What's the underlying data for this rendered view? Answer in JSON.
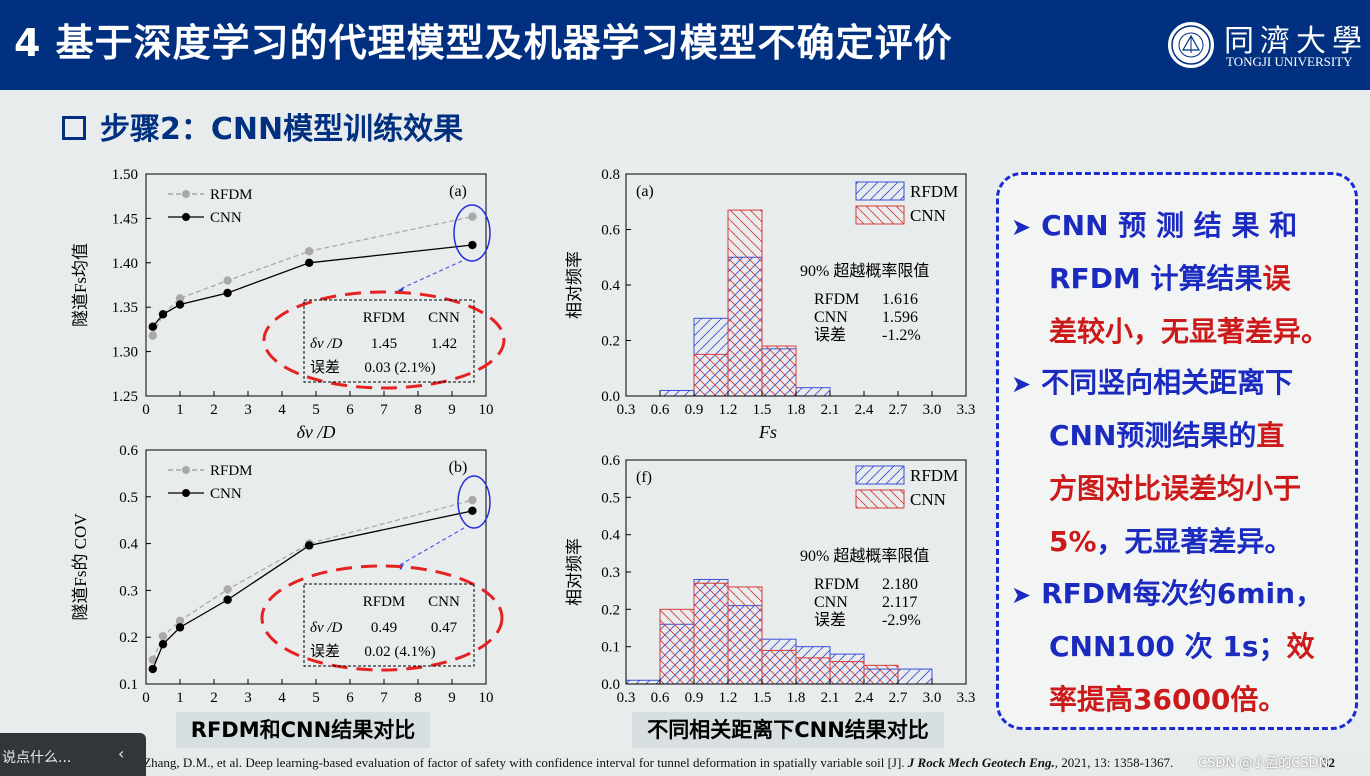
{
  "slide": {
    "title": "4 基于深度学习的代理模型及机器学习模型不确定评价",
    "subheading": "步骤2：CNN模型训练效果",
    "logo": {
      "cn": "同濟大學",
      "en": "TONGJI UNIVERSITY"
    }
  },
  "captions": {
    "left": "RFDM和CNN结果对比",
    "right": "不同相关距离下CNN结果对比"
  },
  "summary": {
    "line1": "CNN 预 测 结 果 和",
    "line2a": "RFDM 计算结果",
    "line2b": "误",
    "line3a": "差较小，无显著差异。",
    "line4": "不同竖向相关距离下",
    "line5a": "CNN预测结果的",
    "line5b": "直",
    "line6": "方图对比误差均小于",
    "line7a": "5%",
    "line7b": "，无显著差异。",
    "line8": "RFDM每次约6min，",
    "line9a": "CNN100 次 1s；",
    "line9b": "效",
    "line10": "率提高36000倍。"
  },
  "footer": {
    "citation_start": "Zhang, J.Z., Phoon, K.K., Zhang, D.M., et al. Deep learning-based evaluation of factor of safety with confidence interval for tunnel deformation in spatially variable soil [J]. ",
    "journal": "J Rock Mech Geotech Eng.",
    "citation_end": ", 2021, 13: 1358-1367.",
    "page_number": "32"
  },
  "overlay": {
    "popup_text": "说点什么...",
    "chevron": "‹",
    "watermark": "CSDN @小孟的CSDN"
  },
  "colors": {
    "title_bg": "#00307f",
    "rfdm": "#3a4fd6",
    "cnn": "#d83a3a",
    "bullet_blue": "#1b2abf",
    "emphasis_red": "#cc1a1a"
  },
  "chart_data": [
    {
      "type": "line",
      "panel_label": "(a)",
      "xlabel": "δv /D",
      "ylabel": "隧道Fs均值",
      "xlim": [
        0,
        10
      ],
      "ylim": [
        1.25,
        1.5
      ],
      "xticks": [
        0,
        1,
        2,
        3,
        4,
        5,
        6,
        7,
        8,
        9,
        10
      ],
      "yticks": [
        1.25,
        1.3,
        1.35,
        1.4,
        1.45,
        1.5
      ],
      "x": [
        0.2,
        0.5,
        1.0,
        2.4,
        4.8,
        9.6
      ],
      "series": [
        {
          "name": "RFDM",
          "values": [
            1.318,
            1.342,
            1.36,
            1.38,
            1.413,
            1.452
          ]
        },
        {
          "name": "CNN",
          "values": [
            1.328,
            1.342,
            1.353,
            1.366,
            1.4,
            1.42
          ]
        }
      ],
      "table": {
        "headers": [
          "",
          "RFDM",
          "CNN"
        ],
        "rows": [
          [
            "δv /D",
            "1.45",
            "1.42"
          ],
          [
            "误差",
            "0.03 (2.1%)",
            ""
          ]
        ]
      }
    },
    {
      "type": "line",
      "panel_label": "(b)",
      "xlabel": "",
      "ylabel": "隧道Fs的 COV",
      "xlim": [
        0,
        10
      ],
      "ylim": [
        0.1,
        0.6
      ],
      "xticks": [
        0,
        1,
        2,
        3,
        4,
        5,
        6,
        7,
        8,
        9,
        10
      ],
      "yticks": [
        0.1,
        0.2,
        0.3,
        0.4,
        0.5,
        0.6
      ],
      "x": [
        0.2,
        0.5,
        1.0,
        2.4,
        4.8,
        9.6
      ],
      "series": [
        {
          "name": "RFDM",
          "values": [
            0.152,
            0.202,
            0.235,
            0.302,
            0.4,
            0.493
          ]
        },
        {
          "name": "CNN",
          "values": [
            0.132,
            0.185,
            0.221,
            0.28,
            0.396,
            0.47
          ]
        }
      ],
      "table": {
        "headers": [
          "",
          "RFDM",
          "CNN"
        ],
        "rows": [
          [
            "δv /D",
            "0.49",
            "0.47"
          ],
          [
            "误差",
            "0.02 (4.1%)",
            ""
          ]
        ]
      }
    },
    {
      "type": "bar",
      "panel_label": "(a)",
      "xlabel": "Fs",
      "ylabel": "相对频率",
      "xlim": [
        0.3,
        3.3
      ],
      "ylim": [
        0,
        0.8
      ],
      "xticks": [
        "0.3",
        "0.6",
        "0.9",
        "1.2",
        "1.5",
        "1.8",
        "2.1",
        "2.4",
        "2.7",
        "3.0",
        "3.3"
      ],
      "yticks": [
        "0.0",
        "0.2",
        "0.4",
        "0.6",
        "0.8"
      ],
      "bin_edges": [
        0.6,
        0.9,
        1.2,
        1.5,
        1.8,
        2.1
      ],
      "series": [
        {
          "name": "RFDM",
          "values": [
            0.02,
            0.28,
            0.5,
            0.17,
            0.03
          ]
        },
        {
          "name": "CNN",
          "values": [
            0.0,
            0.15,
            0.67,
            0.18,
            0.0
          ]
        }
      ],
      "annotation": {
        "title": "90% 超越概率限值",
        "rows": [
          [
            "RFDM",
            "1.616"
          ],
          [
            "CNN",
            "1.596"
          ],
          [
            "误差",
            "-1.2%"
          ]
        ]
      }
    },
    {
      "type": "bar",
      "panel_label": "(f)",
      "xlabel": "",
      "ylabel": "相对频率",
      "xlim": [
        0.3,
        3.3
      ],
      "ylim": [
        0,
        0.6
      ],
      "xticks": [
        "0.3",
        "0.6",
        "0.9",
        "1.2",
        "1.5",
        "1.8",
        "2.1",
        "2.4",
        "2.7",
        "3.0",
        "3.3"
      ],
      "yticks": [
        "0.0",
        "0.1",
        "0.2",
        "0.3",
        "0.4",
        "0.5",
        "0.6"
      ],
      "bin_edges": [
        0.3,
        0.6,
        0.9,
        1.2,
        1.5,
        1.8,
        2.1,
        2.4,
        2.7,
        3.0
      ],
      "series": [
        {
          "name": "RFDM",
          "values": [
            0.01,
            0.16,
            0.28,
            0.21,
            0.12,
            0.1,
            0.08,
            0.04,
            0.04
          ]
        },
        {
          "name": "CNN",
          "values": [
            0.0,
            0.2,
            0.27,
            0.26,
            0.09,
            0.07,
            0.06,
            0.05,
            0.0
          ]
        }
      ],
      "annotation": {
        "title": "90% 超越概率限值",
        "rows": [
          [
            "RFDM",
            "2.180"
          ],
          [
            "CNN",
            "2.117"
          ],
          [
            "误差",
            "-2.9%"
          ]
        ]
      }
    }
  ]
}
